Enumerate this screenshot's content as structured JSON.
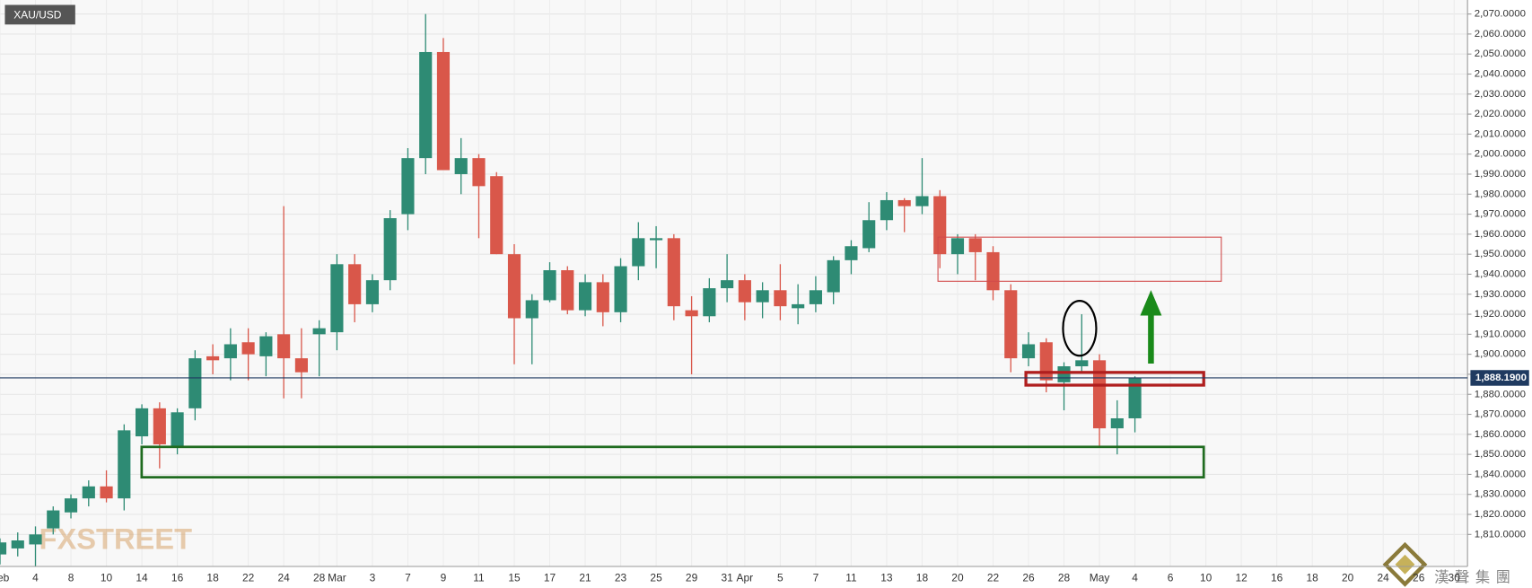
{
  "symbol": "XAU/USD",
  "watermarks": [
    "FXSTREET",
    "漢聲集團"
  ],
  "chart_data": {
    "type": "candlestick",
    "categories": [
      "Feb",
      null,
      "4",
      null,
      "8",
      null,
      "10",
      null,
      "14",
      null,
      "16",
      null,
      "18",
      null,
      "22",
      null,
      "24",
      null,
      "28",
      "Mar",
      null,
      "3",
      null,
      "7",
      null,
      "9",
      null,
      "11",
      null,
      "15",
      null,
      "17",
      null,
      "21",
      null,
      "23",
      null,
      "25",
      null,
      "29",
      null,
      "31",
      "Apr",
      null,
      "5",
      null,
      "7",
      null,
      "11",
      null,
      "13",
      null,
      "18",
      null,
      "20",
      null,
      "22",
      null,
      "26",
      null,
      "28",
      null,
      "May",
      null,
      "4",
      null,
      "6",
      null,
      "10",
      null,
      "12",
      null,
      "16",
      null,
      "18",
      null,
      "20",
      null,
      "24",
      null,
      "26",
      null,
      "30"
    ],
    "open": [
      1800,
      1803,
      1805,
      1813,
      1821,
      1828,
      1834,
      1828,
      1859,
      1873,
      1854,
      1873,
      1899,
      1898,
      1906,
      1899,
      1910,
      1898,
      1910,
      1911,
      1945,
      1925,
      1937,
      1970,
      1998,
      2051,
      1990,
      1998,
      1989,
      1950,
      1918,
      1927,
      1942,
      1922,
      1936,
      1921,
      1944,
      1957,
      1958,
      1922,
      1919,
      1933,
      1937,
      1926,
      1932,
      1923,
      1925,
      1931,
      1947,
      1953,
      1967,
      1977,
      1974,
      1979,
      1950,
      1958,
      1951,
      1932,
      1898,
      1906,
      1886,
      1894,
      1897,
      1863,
      1868,
      null,
      null,
      null,
      null,
      null,
      null,
      null,
      null,
      null,
      null,
      null,
      null,
      null,
      null,
      null,
      null,
      null,
      null
    ],
    "high": [
      1808,
      1811,
      1814,
      1824,
      1830,
      1837,
      1842,
      1865,
      1875,
      1876,
      1873,
      1902,
      1905,
      1913,
      1913,
      1911,
      1974,
      1913,
      1917,
      1950,
      1950,
      1940,
      1972,
      2003,
      2070,
      2058,
      2008,
      2000,
      1991,
      1955,
      1930,
      1946,
      1944,
      1940,
      1940,
      1948,
      1966,
      1964,
      1960,
      1929,
      1938,
      1950,
      1940,
      1936,
      1945,
      1935,
      1939,
      1949,
      1957,
      1976,
      1981,
      1978,
      1998,
      1982,
      1960,
      1960,
      1954,
      1935,
      1911,
      1908,
      1896,
      1920,
      1900,
      1877,
      1889,
      null,
      null,
      null,
      null,
      null,
      null,
      null,
      null,
      null,
      null,
      null,
      null,
      null,
      null,
      null,
      null,
      null,
      null
    ],
    "low": [
      1795,
      1799,
      1794,
      1810,
      1818,
      1824,
      1826,
      1822,
      1855,
      1843,
      1850,
      1867,
      1890,
      1887,
      1887,
      1889,
      1878,
      1878,
      1889,
      1902,
      1916,
      1921,
      1932,
      1962,
      1990,
      1992,
      1980,
      1958,
      1950,
      1895,
      1895,
      1926,
      1920,
      1919,
      1914,
      1916,
      1937,
      1943,
      1917,
      1890,
      1916,
      1926,
      1917,
      1918,
      1917,
      1915,
      1921,
      1925,
      1940,
      1951,
      1962,
      1961,
      1970,
      1943,
      1940,
      1937,
      1927,
      1891,
      1894,
      1881,
      1872,
      1891,
      1854,
      1850,
      1861,
      null,
      null,
      null,
      null,
      null,
      null,
      null,
      null,
      null,
      null,
      null,
      null,
      null,
      null,
      null,
      null,
      null,
      null
    ],
    "close": [
      1806,
      1807,
      1810,
      1822,
      1828,
      1834,
      1828,
      1862,
      1873,
      1855,
      1871,
      1898,
      1897,
      1905,
      1900,
      1909,
      1898,
      1891,
      1913,
      1945,
      1925,
      1937,
      1968,
      1998,
      2051,
      1992,
      1998,
      1984,
      1950,
      1918,
      1927,
      1942,
      1922,
      1936,
      1921,
      1944,
      1958,
      1958,
      1924,
      1919,
      1933,
      1937,
      1926,
      1932,
      1924,
      1925,
      1932,
      1947,
      1954,
      1967,
      1977,
      1974,
      1979,
      1950,
      1958,
      1951,
      1932,
      1898,
      1905,
      1887,
      1894,
      1897,
      1863,
      1868,
      1888.19,
      null,
      null,
      null,
      null,
      null,
      null,
      null,
      null,
      null,
      null,
      null,
      null,
      null,
      null,
      null,
      null,
      null,
      null
    ],
    "colors": {
      "up": "#2e8b74",
      "down": "#d9574a"
    },
    "ylim": [
      1794,
      2077
    ],
    "yticks": [
      {
        "value": 1810,
        "label": "1,810.0000"
      },
      {
        "value": 1820,
        "label": "1,820.0000"
      },
      {
        "value": 1830,
        "label": "1,830.0000"
      },
      {
        "value": 1840,
        "label": "1,840.0000"
      },
      {
        "value": 1850,
        "label": "1,850.0000"
      },
      {
        "value": 1860,
        "label": "1,860.0000"
      },
      {
        "value": 1870,
        "label": "1,870.0000"
      },
      {
        "value": 1880,
        "label": "1,880.0000"
      },
      {
        "value": 1890,
        "label": "1,890.0000"
      },
      {
        "value": 1900,
        "label": "1,900.0000"
      },
      {
        "value": 1910,
        "label": "1,910.0000"
      },
      {
        "value": 1920,
        "label": "1,920.0000"
      },
      {
        "value": 1930,
        "label": "1,930.0000"
      },
      {
        "value": 1940,
        "label": "1,940.0000"
      },
      {
        "value": 1950,
        "label": "1,950.0000"
      },
      {
        "value": 1960,
        "label": "1,960.0000"
      },
      {
        "value": 1970,
        "label": "1,970.0000"
      },
      {
        "value": 1980,
        "label": "1,980.0000"
      },
      {
        "value": 1990,
        "label": "1,990.0000"
      },
      {
        "value": 2000,
        "label": "2,000.0000"
      },
      {
        "value": 2010,
        "label": "2,010.0000"
      },
      {
        "value": 2020,
        "label": "2,020.0000"
      },
      {
        "value": 2030,
        "label": "2,030.0000"
      },
      {
        "value": 2040,
        "label": "2,040.0000"
      },
      {
        "value": 2050,
        "label": "2,050.0000"
      },
      {
        "value": 2060,
        "label": "2,060.0000"
      },
      {
        "value": 2070,
        "label": "2,070.0000"
      }
    ],
    "grid": true,
    "last_price": {
      "value": 1888.19,
      "label": "1,888.1900"
    }
  }
}
